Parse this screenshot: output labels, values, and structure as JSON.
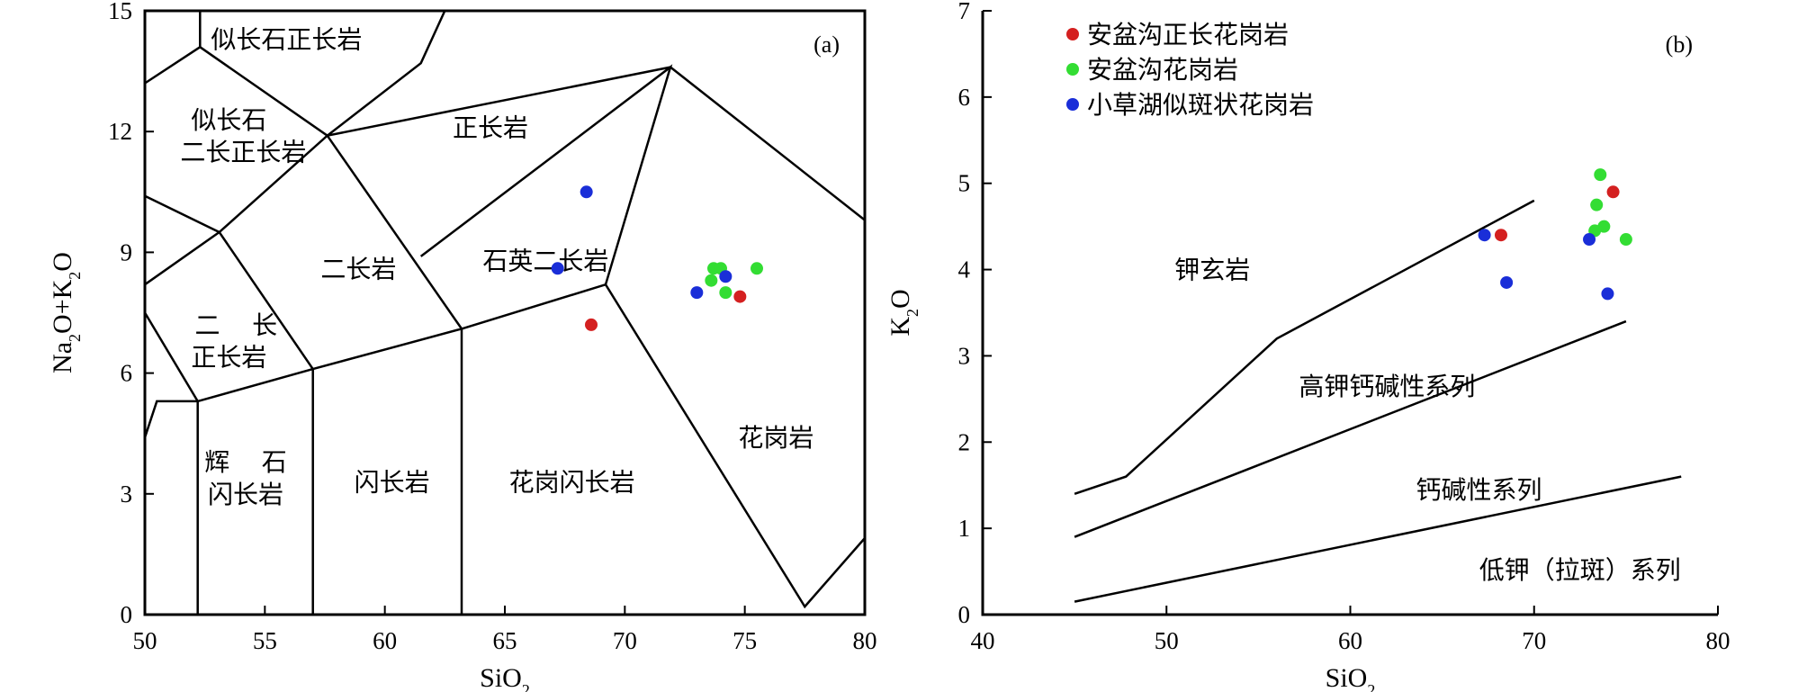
{
  "chart_data": [
    {
      "type": "scatter",
      "panel": "(a)",
      "xlabel": "SiO₂",
      "ylabel": "Na₂O+K₂O",
      "xlim": [
        50,
        80
      ],
      "ylim": [
        0,
        15
      ],
      "xticks": [
        50,
        55,
        60,
        65,
        70,
        75,
        80
      ],
      "yticks": [
        0,
        3,
        6,
        9,
        12,
        15
      ],
      "boundaries": [
        [
          [
            50,
            4.4
          ],
          [
            50.5,
            5.3
          ],
          [
            52.2,
            5.3
          ]
        ],
        [
          [
            50,
            7.5
          ],
          [
            52.2,
            5.3
          ]
        ],
        [
          [
            52.2,
            5.3
          ],
          [
            57,
            6.1
          ],
          [
            63.2,
            7.1
          ],
          [
            69.2,
            8.2
          ],
          [
            77.5,
            0.2
          ],
          [
            80,
            1.9
          ]
        ],
        [
          [
            52.2,
            0
          ],
          [
            52.2,
            5.3
          ]
        ],
        [
          [
            57,
            0
          ],
          [
            57,
            6.1
          ]
        ],
        [
          [
            63.2,
            0
          ],
          [
            63.2,
            7.1
          ]
        ],
        [
          [
            50,
            8.2
          ],
          [
            53.1,
            9.5
          ],
          [
            57,
            6.1
          ]
        ],
        [
          [
            50,
            10.4
          ],
          [
            53.1,
            9.5
          ],
          [
            57.6,
            11.9
          ],
          [
            63.2,
            7.1
          ]
        ],
        [
          [
            50,
            13.2
          ],
          [
            52.3,
            14.1
          ],
          [
            57.6,
            11.9
          ],
          [
            61.5,
            13.7
          ],
          [
            62.5,
            15
          ]
        ],
        [
          [
            52.3,
            14.1
          ],
          [
            52.3,
            15
          ]
        ],
        [
          [
            57.6,
            11.9
          ],
          [
            71.9,
            13.6
          ],
          [
            80,
            9.8
          ]
        ],
        [
          [
            61.5,
            8.9
          ],
          [
            71.9,
            13.6
          ],
          [
            69.2,
            8.2
          ]
        ]
      ],
      "field_labels": [
        {
          "text": "似长石正长岩",
          "x": 55.9,
          "y": 14.3
        },
        {
          "text": "似长石",
          "x": 53.5,
          "y": 12.3
        },
        {
          "text": "二长正长岩",
          "x": 54.1,
          "y": 11.5
        },
        {
          "text": "正长岩",
          "x": 64.4,
          "y": 12.1
        },
        {
          "text": "二长岩",
          "x": 58.9,
          "y": 8.6
        },
        {
          "text": "石英二长岩",
          "x": 66.7,
          "y": 8.8
        },
        {
          "text": "二    长",
          "x": 53.8,
          "y": 7.2
        },
        {
          "text": "正长岩",
          "x": 53.5,
          "y": 6.4
        },
        {
          "text": "辉    石",
          "x": 54.2,
          "y": 3.8
        },
        {
          "text": "闪长岩",
          "x": 54.2,
          "y": 3.0
        },
        {
          "text": "闪长岩",
          "x": 60.3,
          "y": 3.3
        },
        {
          "text": "花岗闪长岩",
          "x": 67.8,
          "y": 3.3
        },
        {
          "text": "花岗岩",
          "x": 76.3,
          "y": 4.4
        }
      ],
      "series": [
        {
          "name": "安盆沟正长花岗岩",
          "color": "#d42020",
          "points": [
            [
              68.6,
              7.2
            ],
            [
              74.8,
              7.9
            ]
          ]
        },
        {
          "name": "安盆沟花岗岩",
          "color": "#33dd33",
          "points": [
            [
              73.7,
              8.6
            ],
            [
              74.0,
              8.6
            ],
            [
              73.6,
              8.3
            ],
            [
              74.2,
              8.0
            ],
            [
              75.5,
              8.6
            ]
          ]
        },
        {
          "name": "小草湖似斑状花岗岩",
          "color": "#1a2ed8",
          "points": [
            [
              68.4,
              10.5
            ],
            [
              67.2,
              8.6
            ],
            [
              73.0,
              8.0
            ],
            [
              74.2,
              8.4
            ]
          ]
        }
      ]
    },
    {
      "type": "scatter",
      "panel": "(b)",
      "xlabel": "SiO₂",
      "ylabel": "K₂O",
      "xlim": [
        40,
        80
      ],
      "ylim": [
        0,
        7
      ],
      "xticks": [
        40,
        50,
        60,
        70,
        80
      ],
      "yticks": [
        0,
        1,
        2,
        3,
        4,
        5,
        6,
        7
      ],
      "boundaries": [
        [
          [
            45,
            1.4
          ],
          [
            47.8,
            1.6
          ],
          [
            56,
            3.2
          ],
          [
            70,
            4.8
          ]
        ],
        [
          [
            45,
            0.9
          ],
          [
            75,
            3.4
          ]
        ],
        [
          [
            45,
            0.15
          ],
          [
            78,
            1.6
          ]
        ]
      ],
      "field_labels": [
        {
          "text": "钾玄岩",
          "x": 52.5,
          "y": 4.0
        },
        {
          "text": "高钾钙碱性系列",
          "x": 62.0,
          "y": 2.65
        },
        {
          "text": "钙碱性系列",
          "x": 67.0,
          "y": 1.45
        },
        {
          "text": "低钾（拉斑）系列",
          "x": 72.5,
          "y": 0.52
        }
      ],
      "series": [
        {
          "name": "安盆沟正长花岗岩",
          "color": "#d42020",
          "points": [
            [
              68.2,
              4.4
            ],
            [
              74.3,
              4.9
            ]
          ]
        },
        {
          "name": "安盆沟花岗岩",
          "color": "#33dd33",
          "points": [
            [
              73.6,
              5.1
            ],
            [
              73.4,
              4.75
            ],
            [
              73.8,
              4.5
            ],
            [
              73.3,
              4.45
            ],
            [
              75.0,
              4.35
            ]
          ]
        },
        {
          "name": "小草湖似斑状花岗岩",
          "color": "#1a2ed8",
          "points": [
            [
              67.3,
              4.4
            ],
            [
              68.5,
              3.85
            ],
            [
              73.0,
              4.35
            ],
            [
              74.0,
              3.72
            ]
          ]
        }
      ],
      "legend": [
        "安盆沟正长花岗岩",
        "安盆沟花岗岩",
        "小草湖似斑状花岗岩"
      ]
    }
  ]
}
